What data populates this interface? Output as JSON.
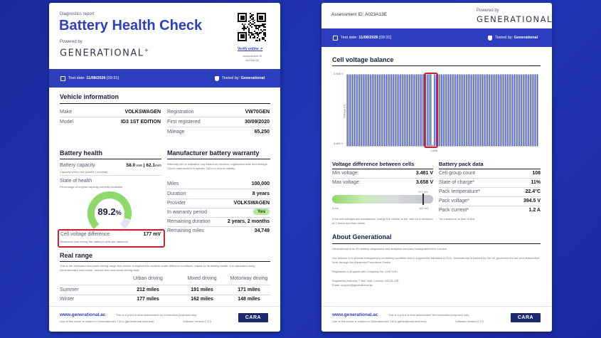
{
  "left": {
    "report_label": "Diagnostics report",
    "title": "Battery Health Check",
    "powered_by": "Powered by",
    "brand": "GENERATIONAL",
    "brand_plus": "+",
    "verify_link": "Verify online",
    "assessment_label": "Assessment ID",
    "assessment_id": "A023A13E",
    "test_date_label": "Test date:",
    "test_date": "11/08/2026",
    "test_time": "[09:31]",
    "tested_by_label": "Tested by:",
    "tested_by": "Generational",
    "vehicle_info": {
      "title": "Vehicle information",
      "make_label": "Make",
      "make": "VOLKSWAGEN",
      "model_label": "Model",
      "model": "ID3 1ST EDITION",
      "registration_label": "Registration",
      "registration": "VW70GEN",
      "first_registered_label": "First registered",
      "first_registered": "30/09/2020",
      "mileage_label": "Mileage",
      "mileage": "65,250"
    },
    "battery_health": {
      "title": "Battery health",
      "capacity_label": "Battery capacity",
      "capacity_usable": "58.0",
      "capacity_unit": "kWh",
      "capacity_sep": "|",
      "capacity_nominal": "62.1",
      "capacity_note": "Capacity when new (usable | nominal).",
      "soh_label": "State of health",
      "soh_note": "Percentage of original capacity currently available.",
      "soh_value": "89.2",
      "soh_unit": "%",
      "soh_fraction": 0.892,
      "cvd_label": "Cell voltage difference",
      "cvd_value": "177 mV",
      "cvd_note": "Measures how evenly the battery's cells are balanced."
    },
    "warranty": {
      "title": "Manufacturer battery warranty",
      "note": "Warranty info is indicative only based on duration, registration date and mileage. Check manufacturer's specific T&Cs to ensure validity.",
      "miles_label": "Miles",
      "miles": "100,000",
      "duration_label": "Duration",
      "duration": "8 years",
      "provider_label": "Provider",
      "provider": "VOLKSWAGEN",
      "in_warranty_label": "In warranty period",
      "in_warranty": "Yes",
      "remaining_duration_label": "Remaining duration",
      "remaining_duration": "2 years, 2 months",
      "remaining_miles_label": "Remaining miles",
      "remaining_miles": "34,749"
    },
    "real_range": {
      "title": "Real range",
      "note": "This is the estimated real-world driving range this vehicle is expected to achieve under different conditions, based on its battery health. It is calculated using Generational's own model, derived from real-world driving data.",
      "headers": [
        "Urban driving",
        "Mixed driving",
        "Motorway driving"
      ],
      "rows": [
        {
          "label": "Summer",
          "values": [
            "212 miles",
            "191 miles",
            "171 miles"
          ]
        },
        {
          "label": "Winter",
          "values": [
            "177 miles",
            "162 miles",
            "148 miles"
          ]
        }
      ]
    },
    "footer": {
      "site": "www.generational.ac",
      "line1": "This is a point-in-time assessment for information purposes only.",
      "line2": "Use of this report is subject to Generational's T&Cs (generational.ac/terms)",
      "version": "Software version 2.3.3",
      "cara": "CARA"
    }
  },
  "right": {
    "assessment_text": "Assessment ID: A023A13E",
    "powered_by": "Powered by",
    "brand": "GENERATIONAL",
    "brand_plus": "+",
    "test_date_label": "Test date:",
    "test_date": "11/08/2026",
    "test_time": "[09:31]",
    "tested_by_label": "Tested by:",
    "tested_by": "Generational",
    "cell_balance": {
      "title": "Cell voltage balance",
      "y_top": "3.658 V",
      "y_bottom": "3.481 V",
      "y_label": "Voltage (V)",
      "x_label": "Cells"
    },
    "chart_data": {
      "type": "bar",
      "title": "Cell voltage balance",
      "xlabel": "Cells",
      "ylabel": "Voltage (V)",
      "ylim": [
        3.481,
        3.658
      ],
      "cell_count": 108,
      "typical_value": 3.652,
      "low_cell_index": 48,
      "low_cell_value": 3.481
    },
    "voltage_diff": {
      "title": "Voltage difference between cells",
      "min_label": "Min voltage:",
      "min": "3.481 V",
      "max_label": "Max voltage:",
      "max": "3.658 V",
      "bar_value_label": "177 mV",
      "bar_min": "0 mV",
      "bar_max": "100 mV",
      "note": "If the cell voltages are unbalanced, charge the vehicle to full, wait for a minimum of 2 hours and then retest."
    },
    "pack_data": {
      "title": "Battery pack data",
      "items": [
        {
          "label": "Cell group count",
          "value": "108"
        },
        {
          "label": "State of charge*",
          "value": "11%"
        },
        {
          "label": "Pack temperature*",
          "value": "22.4°C"
        },
        {
          "label": "Pack voltage*",
          "value": "394.5 V"
        },
        {
          "label": "Pack current*",
          "value": "1.2 A"
        }
      ],
      "note": "*As measured at time of test"
    },
    "about": {
      "title": "About Generational",
      "p1": "Generational is an EV battery diagnostics and analytics company headquartered in London.",
      "p2": "Our mission is to provide transparency on battery condition and to support the transition to EVs. Generational is backed by the UK government's net zero automotive fund, through the Advanced Propulsion Centre.",
      "p3": "Registered in England with Company No. 12877491",
      "p4": "Registered Address: 7 Bell Yard, London, WC2A 2JR",
      "p5": "Email: support@generational.ac"
    },
    "footer": {
      "site": "www.generational.ac",
      "line1": "This is a point-in-time assessment for information purposes only.",
      "line2": "Use of this report is subject to Generational's T&Cs (generational.ac/terms)",
      "version": "Software version 2.3.3",
      "cara": "CARA"
    }
  }
}
